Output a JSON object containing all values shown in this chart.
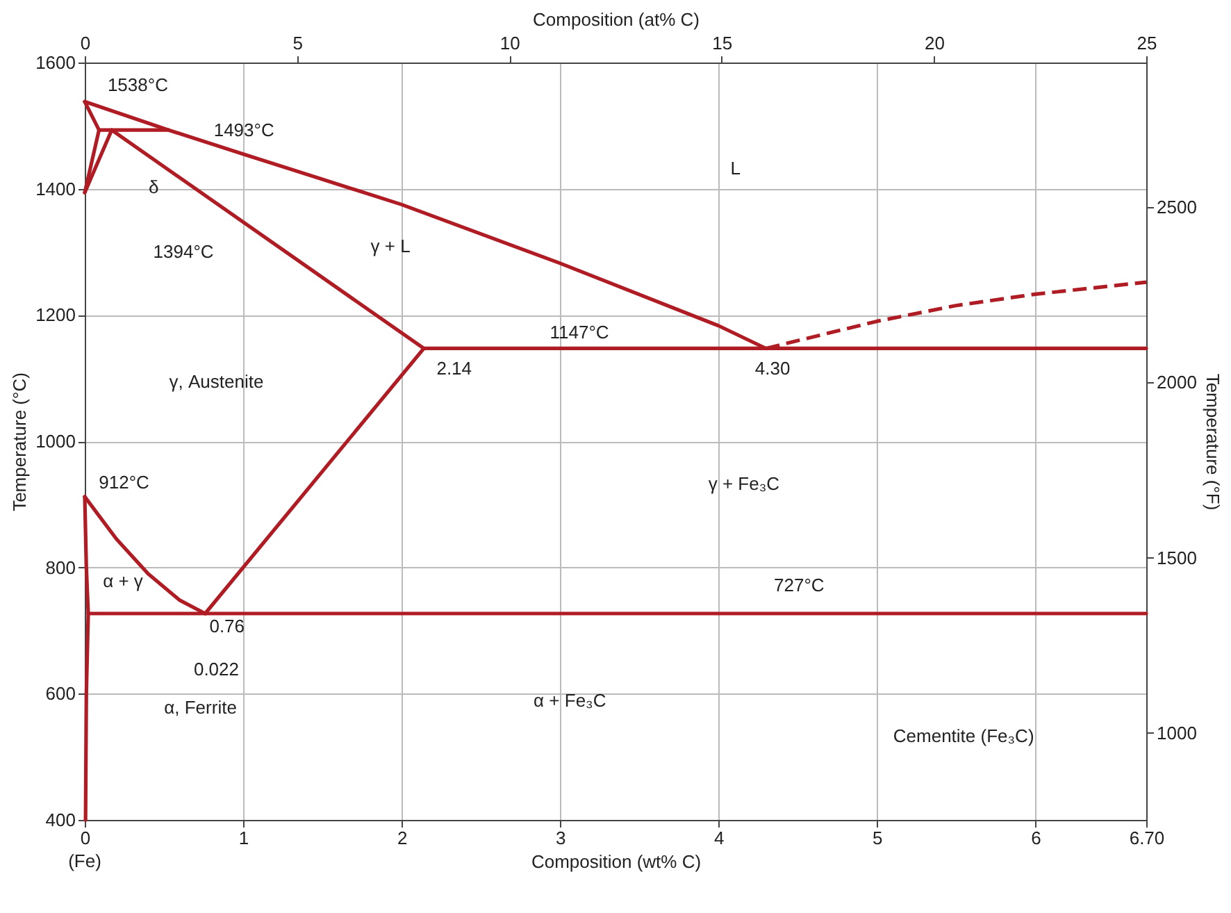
{
  "chart_data": {
    "type": "line",
    "xlabel": "Composition (wt% C)",
    "ylabel": "Temperature (°C)",
    "x2label": "Composition (at% C)",
    "y2label": "Temperature (°F)",
    "xlim": [
      0,
      6.7
    ],
    "xticks": [
      0,
      1,
      2,
      3,
      4,
      5,
      6,
      {
        "value": 6.7,
        "label": "6.70"
      }
    ],
    "ylim": [
      400,
      1600
    ],
    "yticks": [
      400,
      600,
      800,
      1000,
      1200,
      1400,
      1600
    ],
    "x2lim": [
      0,
      25
    ],
    "x2ticks": [
      0,
      5,
      10,
      15,
      20,
      25
    ],
    "y2lim": [
      752,
      2912
    ],
    "y2ticks": [
      1000,
      1500,
      2000,
      2500
    ],
    "grid": true,
    "marker": "none",
    "series": [
      {
        "color": "#b01c24",
        "line_style": "solid",
        "x": [
          0,
          0.09
        ],
        "values": [
          1538,
          1493
        ]
      },
      {
        "color": "#b01c24",
        "line_style": "solid",
        "x": [
          0,
          0.09
        ],
        "values": [
          1394,
          1493
        ]
      },
      {
        "color": "#b01c24",
        "line_style": "solid",
        "x": [
          0,
          0.17
        ],
        "values": [
          1394,
          1493
        ]
      },
      {
        "color": "#b01c24",
        "line_style": "solid",
        "x": [
          0.09,
          0.53
        ],
        "values": [
          1493,
          1493
        ]
      },
      {
        "color": "#b01c24",
        "line_style": "solid",
        "x": [
          0,
          0.53,
          1,
          2,
          3,
          4,
          4.3
        ],
        "values": [
          1538,
          1493,
          1455,
          1375,
          1282,
          1183,
          1147
        ]
      },
      {
        "color": "#b01c24",
        "line_style": "solid",
        "x": [
          0.17,
          2.14
        ],
        "values": [
          1493,
          1147
        ]
      },
      {
        "color": "#b01c24",
        "line_style": "solid",
        "x": [
          2.14,
          6.7
        ],
        "values": [
          1147,
          1147
        ]
      },
      {
        "color": "#b01c24",
        "line_style": "solid",
        "x": [
          0.76,
          2.14
        ],
        "values": [
          727,
          1147
        ]
      },
      {
        "color": "#b01c24",
        "line_style": "solid",
        "x": [
          0,
          0.2,
          0.4,
          0.6,
          0.76
        ],
        "values": [
          912,
          845,
          790,
          748,
          727
        ]
      },
      {
        "color": "#b01c24",
        "line_style": "solid",
        "x": [
          0,
          0.01,
          0.022,
          0.01,
          0.005
        ],
        "values": [
          912,
          800,
          727,
          600,
          400
        ]
      },
      {
        "color": "#b01c24",
        "line_style": "solid",
        "x": [
          0.022,
          6.7
        ],
        "values": [
          727,
          727
        ]
      },
      {
        "color": "#b01c24",
        "line_style": "dashed",
        "x": [
          4.3,
          5,
          5.5,
          6,
          6.7
        ],
        "values": [
          1147,
          1190,
          1215,
          1233,
          1252
        ]
      }
    ],
    "annotations": [
      "1538°C",
      "1493°C",
      "δ",
      "1394°C",
      "L",
      "γ + L",
      "1147°C",
      "2.14",
      "4.30",
      "γ, Austenite",
      "912°C",
      "γ + Fe₃C",
      "α + γ",
      "727°C",
      "0.76",
      "0.022",
      "α, Ferrite",
      "α + Fe₃C",
      "Cementite (Fe₃C)",
      "(Fe)"
    ]
  }
}
